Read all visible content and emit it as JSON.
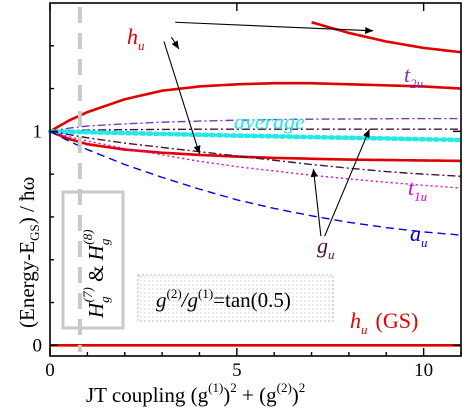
{
  "chart_data": {
    "type": "line",
    "xlabel": "JT coupling (g(1))2 + (g(2))2",
    "ylabel": "(Energy-EGS) / ħω",
    "xlim": [
      0,
      11
    ],
    "ylim": [
      -0.05,
      1.6
    ],
    "x_ticks": [
      0,
      5,
      10
    ],
    "y_ticks": [
      0,
      1
    ],
    "grid": false,
    "annotation_ratio": "g(2)/g(1)=tan(0.5)",
    "annotation_coupling": "Hg(7) & Hg(8)",
    "vline_x": 0.8,
    "x": [
      0,
      0.5,
      1,
      2,
      3,
      4,
      5,
      6,
      7,
      8,
      9,
      10,
      11
    ],
    "series": [
      {
        "name": "hu (GS)",
        "color": "#e00000",
        "style": "solid",
        "values": [
          0,
          0,
          0,
          0,
          0,
          0,
          0,
          0,
          0,
          0,
          0,
          0,
          0
        ]
      },
      {
        "name": "hu",
        "color": "#e00000",
        "style": "solid",
        "values": [
          1,
          1.05,
          1.09,
          1.15,
          1.19,
          1.21,
          1.22,
          1.225,
          1.225,
          1.22,
          1.215,
          1.21,
          1.2
        ]
      },
      {
        "name": "hu",
        "color": "#e00000",
        "style": "solid",
        "values": [
          1,
          0.965,
          0.94,
          0.915,
          0.9,
          0.89,
          0.882,
          0.876,
          0.872,
          0.868,
          0.866,
          0.864,
          0.862
        ]
      },
      {
        "name": "hu",
        "color": "#e00000",
        "style": "solid",
        "values": [
          null,
          null,
          null,
          null,
          null,
          null,
          null,
          null,
          1.51,
          1.46,
          1.42,
          1.39,
          1.37
        ]
      },
      {
        "name": "t2u",
        "color": "#7b35c8",
        "style": "dashdot",
        "values": [
          1,
          1.015,
          1.025,
          1.035,
          1.043,
          1.048,
          1.052,
          1.055,
          1.057,
          1.058,
          1.059,
          1.06,
          1.06
        ]
      },
      {
        "name": "gu",
        "color": "#4a0f3a",
        "style": "dashdot",
        "values": [
          1,
          1.004,
          1.006,
          1.008,
          1.009,
          1.01,
          1.01,
          1.01,
          1.01,
          1.01,
          1.01,
          1.01,
          1.01
        ]
      },
      {
        "name": "average",
        "color": "#22e8e8",
        "style": "dotted",
        "values": [
          1,
          0.998,
          0.996,
          0.992,
          0.988,
          0.984,
          0.98,
          0.977,
          0.973,
          0.97,
          0.967,
          0.963,
          0.96
        ]
      },
      {
        "name": "gu",
        "color": "#4a0f3a",
        "style": "dashdot",
        "values": [
          1,
          0.985,
          0.97,
          0.945,
          0.925,
          0.905,
          0.885,
          0.865,
          0.845,
          0.828,
          0.812,
          0.8,
          0.79
        ]
      },
      {
        "name": "t1u",
        "color": "#e000e0",
        "style": "dotted",
        "values": [
          1,
          0.975,
          0.955,
          0.92,
          0.89,
          0.86,
          0.835,
          0.815,
          0.795,
          0.778,
          0.762,
          0.748,
          0.735
        ]
      },
      {
        "name": "au",
        "color": "#0000e0",
        "style": "dashed",
        "values": [
          1,
          0.955,
          0.915,
          0.845,
          0.785,
          0.73,
          0.68,
          0.64,
          0.605,
          0.575,
          0.55,
          0.53,
          0.515
        ]
      }
    ],
    "labels": {
      "hu_top": {
        "base": "h",
        "sub": "u"
      },
      "t2u": {
        "base": "t",
        "sub": "2u"
      },
      "average": "average",
      "t1u": {
        "base": "t",
        "sub": "1u"
      },
      "au": {
        "base": "a",
        "sub": "u"
      },
      "gu": {
        "base": "g",
        "sub": "u"
      },
      "hu_gs": {
        "base": "h",
        "sub": "u",
        "suffix": "(GS)"
      }
    }
  },
  "text": {
    "ylabel_main": "(Energy-E",
    "ylabel_sub": "GS",
    "ylabel_tail": ") / ħω",
    "xlabel_main": "JT coupling (g",
    "xlabel_sup1": "(1)",
    "xlabel_mid": ")",
    "xlabel_sup2": "2",
    "xlabel_plus": " + (g",
    "xlabel_sup3": "(2)",
    "xlabel_end": ")",
    "xlabel_sup4": "2",
    "ratio_a": "g",
    "ratio_a_sup": "(2)",
    "ratio_b": "/g",
    "ratio_b_sup": "(1)",
    "ratio_c": "=tan(0.5)",
    "coup_h1": "H",
    "coup_sub1": "g",
    "coup_sup1": "(7)",
    "coup_amp": " & ",
    "coup_h2": "H",
    "coup_sub2": "g",
    "coup_sup2": "(8)"
  }
}
